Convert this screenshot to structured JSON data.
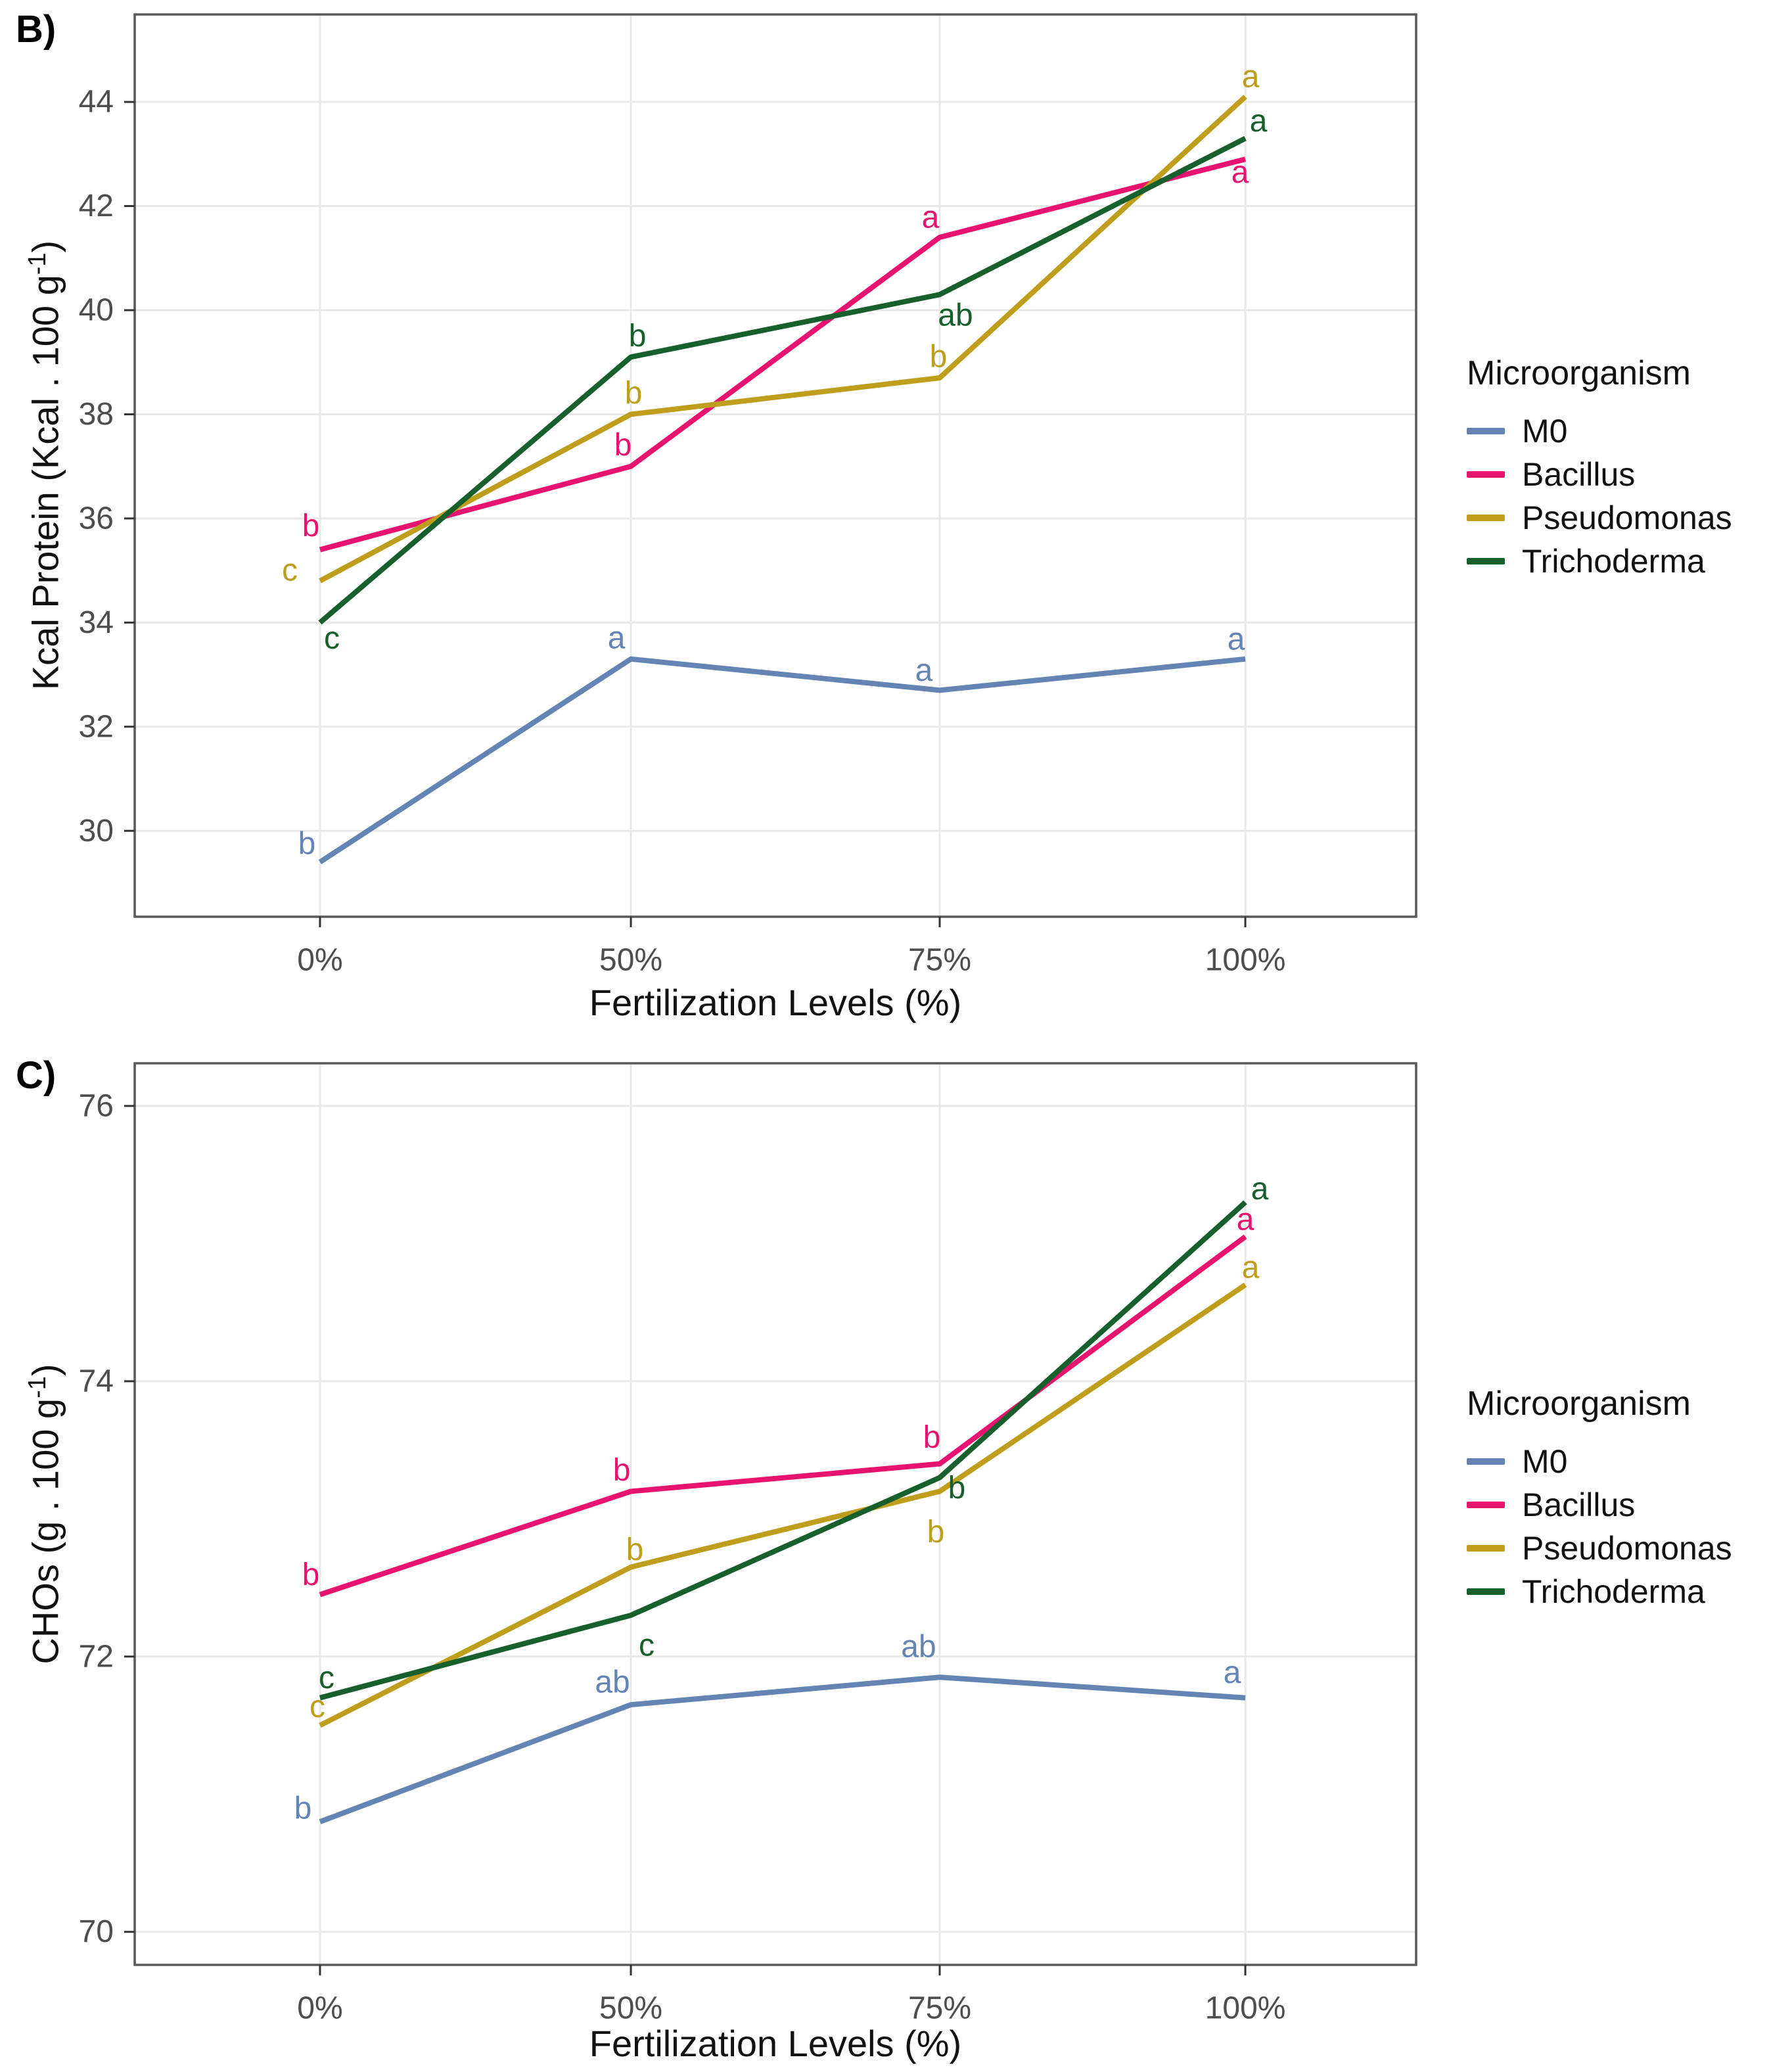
{
  "figure": {
    "background": "#FFFFFF",
    "panels": [
      {
        "panel_label": "B)"
      },
      {
        "panel_label": "C)"
      }
    ]
  },
  "colors": {
    "axis_text": "#4D4D4D",
    "title_text": "#111111",
    "grid": "#E9E9E9",
    "panel_border": "#59595B",
    "tick": "#333333",
    "background": "#FFFFFF"
  },
  "chart_data": [
    {
      "id": "B",
      "type": "line",
      "panel_label": "B)",
      "xlabel": "Fertilization Levels (%)",
      "ylabel": {
        "text": "Kcal Protein (Kcal . 100 g⁻¹)",
        "pre": "Kcal Protein (Kcal . 100 g",
        "sup": "-1",
        "post": ")"
      },
      "categories": [
        "0%",
        "50%",
        "75%",
        "100%"
      ],
      "yticks": [
        30,
        32,
        34,
        36,
        38,
        40,
        42,
        44
      ],
      "ylim": [
        28.35,
        45.68
      ],
      "grid": true,
      "legend_position": "right",
      "legend_title": "Microorganism",
      "series": [
        {
          "name": "M0",
          "color": "#6484B4",
          "values": [
            29.4,
            33.3,
            32.7,
            33.3
          ],
          "sig_letters": [
            "b",
            "a",
            "a",
            "a"
          ],
          "letter_offsets": [
            [
              -20,
              -28
            ],
            [
              -22,
              -32
            ],
            [
              -24,
              -30
            ],
            [
              -14,
              -30
            ]
          ]
        },
        {
          "name": "Bacillus",
          "color": "#E8136E",
          "values": [
            35.4,
            37.0,
            41.4,
            42.9
          ],
          "sig_letters": [
            "b",
            "b",
            "a",
            "a"
          ],
          "letter_offsets": [
            [
              -14,
              -36
            ],
            [
              -12,
              -32
            ],
            [
              -14,
              -30
            ],
            [
              -8,
              20
            ]
          ]
        },
        {
          "name": "Pseudomonas",
          "color": "#BE9E1C",
          "values": [
            34.8,
            38.0,
            38.7,
            44.1
          ],
          "sig_letters": [
            "c",
            "b",
            "b",
            "a"
          ],
          "letter_offsets": [
            [
              -46,
              -16
            ],
            [
              4,
              -32
            ],
            [
              -2,
              -32
            ],
            [
              8,
              -30
            ]
          ]
        },
        {
          "name": "Trichoderma",
          "color": "#175F2C",
          "values": [
            34.0,
            39.1,
            40.3,
            43.3
          ],
          "sig_letters": [
            "c",
            "b",
            "ab",
            "a"
          ],
          "letter_offsets": [
            [
              18,
              24
            ],
            [
              10,
              -32
            ],
            [
              24,
              32
            ],
            [
              20,
              -26
            ]
          ]
        }
      ]
    },
    {
      "id": "C",
      "type": "line",
      "panel_label": "C)",
      "xlabel": "Fertilization Levels (%)",
      "ylabel": {
        "text": "CHOs (g . 100 g⁻¹)",
        "pre": "CHOs (g . 100 g",
        "sup": "-1",
        "post": ")"
      },
      "categories": [
        "0%",
        "50%",
        "75%",
        "100%"
      ],
      "yticks": [
        70,
        72,
        74,
        76
      ],
      "ylim": [
        69.76,
        76.31
      ],
      "grid": true,
      "legend_position": "right",
      "legend_title": "Microorganism",
      "series": [
        {
          "name": "M0",
          "color": "#6484B4",
          "values": [
            70.8,
            71.65,
            71.85,
            71.7
          ],
          "sig_letters": [
            "b",
            "ab",
            "ab",
            "a"
          ],
          "letter_offsets": [
            [
              -26,
              -20
            ],
            [
              -28,
              -34
            ],
            [
              -32,
              -46
            ],
            [
              -20,
              -38
            ]
          ]
        },
        {
          "name": "Bacillus",
          "color": "#E8136E",
          "values": [
            72.45,
            73.2,
            73.4,
            75.05
          ],
          "sig_letters": [
            "b",
            "b",
            "b",
            "a"
          ],
          "letter_offsets": [
            [
              -14,
              -30
            ],
            [
              -14,
              -32
            ],
            [
              -12,
              -40
            ],
            [
              0,
              -26
            ]
          ]
        },
        {
          "name": "Pseudomonas",
          "color": "#BE9E1C",
          "values": [
            71.5,
            72.65,
            73.2,
            74.7
          ],
          "sig_letters": [
            "c",
            "b",
            "b",
            "a"
          ],
          "letter_offsets": [
            [
              -4,
              -28
            ],
            [
              6,
              -26
            ],
            [
              -6,
              62
            ],
            [
              8,
              -26
            ]
          ]
        },
        {
          "name": "Trichoderma",
          "color": "#175F2C",
          "values": [
            71.7,
            72.3,
            73.3,
            75.3
          ],
          "sig_letters": [
            "c",
            "c",
            "b",
            "a"
          ],
          "letter_offsets": [
            [
              10,
              -30
            ],
            [
              24,
              46
            ],
            [
              26,
              16
            ],
            [
              22,
              -20
            ]
          ]
        }
      ]
    }
  ]
}
